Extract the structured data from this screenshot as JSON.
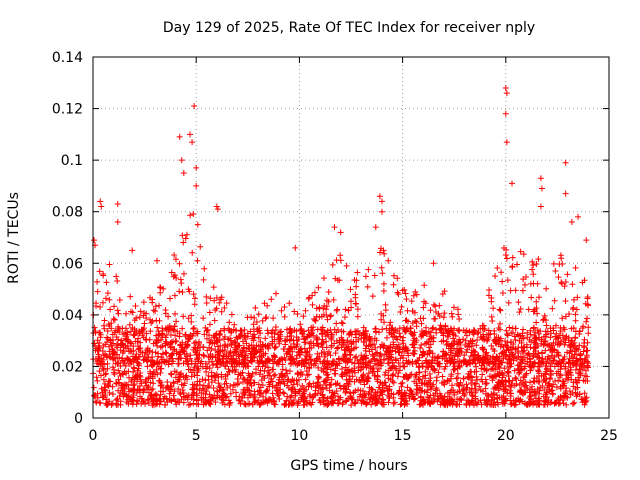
{
  "chart_data": {
    "type": "scatter",
    "title": "Day 129 of 2025, Rate Of TEC Index for receiver nply",
    "xlabel": "GPS time / hours",
    "ylabel": "ROTI / TECUs",
    "xlim": [
      0,
      25
    ],
    "ylim": [
      0,
      0.14
    ],
    "xticks": [
      {
        "value": 0,
        "label": "0"
      },
      {
        "value": 5,
        "label": "5"
      },
      {
        "value": 10,
        "label": "10"
      },
      {
        "value": 15,
        "label": "15"
      },
      {
        "value": 20,
        "label": "20"
      },
      {
        "value": 25,
        "label": "25"
      }
    ],
    "yticks": [
      {
        "value": 0,
        "label": "0"
      },
      {
        "value": 0.02,
        "label": "0.02"
      },
      {
        "value": 0.04,
        "label": "0.04"
      },
      {
        "value": 0.06,
        "label": "0.06"
      },
      {
        "value": 0.08,
        "label": "0.08"
      },
      {
        "value": 0.1,
        "label": "0.1"
      },
      {
        "value": 0.12,
        "label": "0.12"
      },
      {
        "value": 0.14,
        "label": "0.14"
      }
    ],
    "grid": true,
    "marker": "+",
    "color": "#ff0000",
    "x_range_observed": [
      0,
      24
    ],
    "typical_band": [
      0.005,
      0.035
    ],
    "envelope": [
      {
        "x": 0.0,
        "upper": 0.05
      },
      {
        "x": 0.5,
        "upper": 0.062
      },
      {
        "x": 1.0,
        "upper": 0.058
      },
      {
        "x": 2.0,
        "upper": 0.045
      },
      {
        "x": 3.0,
        "upper": 0.048
      },
      {
        "x": 4.0,
        "upper": 0.065
      },
      {
        "x": 4.5,
        "upper": 0.085
      },
      {
        "x": 5.0,
        "upper": 0.08
      },
      {
        "x": 5.5,
        "upper": 0.06
      },
      {
        "x": 6.0,
        "upper": 0.05
      },
      {
        "x": 7.0,
        "upper": 0.04
      },
      {
        "x": 8.0,
        "upper": 0.045
      },
      {
        "x": 9.0,
        "upper": 0.05
      },
      {
        "x": 10.0,
        "upper": 0.04
      },
      {
        "x": 11.0,
        "upper": 0.055
      },
      {
        "x": 12.0,
        "upper": 0.065
      },
      {
        "x": 13.0,
        "upper": 0.055
      },
      {
        "x": 14.0,
        "upper": 0.07
      },
      {
        "x": 15.0,
        "upper": 0.05
      },
      {
        "x": 16.0,
        "upper": 0.055
      },
      {
        "x": 17.0,
        "upper": 0.05
      },
      {
        "x": 18.0,
        "upper": 0.04
      },
      {
        "x": 18.5,
        "upper": 0.03
      },
      {
        "x": 19.0,
        "upper": 0.045
      },
      {
        "x": 20.0,
        "upper": 0.075
      },
      {
        "x": 21.0,
        "upper": 0.065
      },
      {
        "x": 22.0,
        "upper": 0.06
      },
      {
        "x": 23.0,
        "upper": 0.065
      },
      {
        "x": 24.0,
        "upper": 0.06
      }
    ],
    "highlighted_points": [
      {
        "x": 0.05,
        "y": 0.069
      },
      {
        "x": 0.1,
        "y": 0.067
      },
      {
        "x": 0.35,
        "y": 0.084
      },
      {
        "x": 0.4,
        "y": 0.082
      },
      {
        "x": 1.2,
        "y": 0.083
      },
      {
        "x": 1.2,
        "y": 0.076
      },
      {
        "x": 1.9,
        "y": 0.065
      },
      {
        "x": 3.1,
        "y": 0.061
      },
      {
        "x": 4.2,
        "y": 0.109
      },
      {
        "x": 4.3,
        "y": 0.1
      },
      {
        "x": 4.4,
        "y": 0.095
      },
      {
        "x": 4.7,
        "y": 0.11
      },
      {
        "x": 4.8,
        "y": 0.107
      },
      {
        "x": 4.9,
        "y": 0.121
      },
      {
        "x": 5.0,
        "y": 0.097
      },
      {
        "x": 5.0,
        "y": 0.09
      },
      {
        "x": 6.0,
        "y": 0.082
      },
      {
        "x": 6.05,
        "y": 0.081
      },
      {
        "x": 9.8,
        "y": 0.066
      },
      {
        "x": 11.7,
        "y": 0.074
      },
      {
        "x": 12.0,
        "y": 0.072
      },
      {
        "x": 13.7,
        "y": 0.074
      },
      {
        "x": 13.9,
        "y": 0.086
      },
      {
        "x": 14.0,
        "y": 0.084
      },
      {
        "x": 14.0,
        "y": 0.08
      },
      {
        "x": 16.5,
        "y": 0.06
      },
      {
        "x": 20.0,
        "y": 0.128
      },
      {
        "x": 20.05,
        "y": 0.126
      },
      {
        "x": 20.0,
        "y": 0.118
      },
      {
        "x": 20.05,
        "y": 0.107
      },
      {
        "x": 20.3,
        "y": 0.091
      },
      {
        "x": 21.7,
        "y": 0.093
      },
      {
        "x": 21.75,
        "y": 0.089
      },
      {
        "x": 21.7,
        "y": 0.082
      },
      {
        "x": 22.9,
        "y": 0.099
      },
      {
        "x": 22.9,
        "y": 0.087
      },
      {
        "x": 23.5,
        "y": 0.078
      },
      {
        "x": 23.2,
        "y": 0.076
      },
      {
        "x": 23.9,
        "y": 0.069
      }
    ]
  }
}
